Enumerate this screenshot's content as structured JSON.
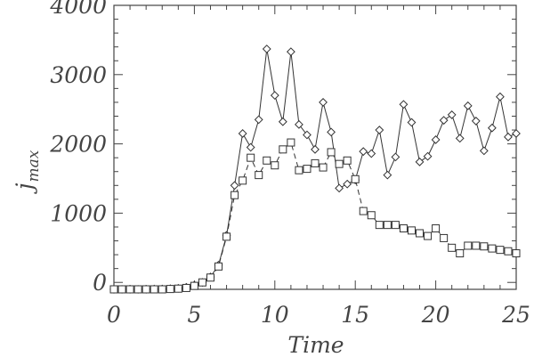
{
  "chart_data": {
    "type": "line",
    "title": "",
    "xlabel": "Time",
    "ylabel_main": "j",
    "ylabel_sub": "max",
    "xlim": [
      0,
      25
    ],
    "ylim": [
      -100,
      4000
    ],
    "xticks": [
      0,
      5,
      10,
      15,
      20,
      25
    ],
    "yticks": [
      0,
      1000,
      2000,
      3000,
      4000
    ],
    "grid": false,
    "legend": "none",
    "colors": {
      "axis": "#444444",
      "series": "#333333"
    },
    "x": [
      0,
      0.5,
      1,
      1.5,
      2,
      2.5,
      3,
      3.5,
      4,
      4.5,
      5,
      5.5,
      6,
      6.5,
      7,
      7.5,
      8,
      8.5,
      9,
      9.5,
      10,
      10.5,
      11,
      11.5,
      12,
      12.5,
      13,
      13.5,
      14,
      14.5,
      15,
      15.5,
      16,
      16.5,
      17,
      17.5,
      18,
      18.5,
      19,
      19.5,
      20,
      20.5,
      21,
      21.5,
      22,
      22.5,
      23,
      23.5,
      24,
      24.5,
      25
    ],
    "series": [
      {
        "marker": "diamond",
        "linestyle": "solid",
        "values": [
          -100,
          -100,
          -100,
          -100,
          -100,
          -95,
          -95,
          -90,
          -85,
          -70,
          -40,
          0,
          80,
          250,
          680,
          1400,
          2150,
          1950,
          2350,
          3370,
          2700,
          2320,
          3330,
          2280,
          2130,
          1920,
          2600,
          2170,
          1360,
          1420,
          1480,
          1890,
          1860,
          2200,
          1550,
          1810,
          2570,
          2310,
          1740,
          1820,
          2060,
          2340,
          2420,
          2080,
          2550,
          2330,
          1900,
          2230,
          2680,
          2100,
          2150
        ]
      },
      {
        "marker": "square",
        "linestyle": "dashed",
        "values": [
          -100,
          -100,
          -100,
          -100,
          -100,
          -100,
          -100,
          -95,
          -90,
          -80,
          -50,
          0,
          70,
          230,
          660,
          1260,
          1470,
          1800,
          1550,
          1760,
          1690,
          1920,
          2020,
          1620,
          1640,
          1720,
          1660,
          1880,
          1710,
          1760,
          1490,
          1030,
          970,
          830,
          830,
          830,
          780,
          750,
          710,
          670,
          780,
          640,
          500,
          420,
          530,
          530,
          520,
          490,
          470,
          450,
          420
        ]
      }
    ]
  }
}
